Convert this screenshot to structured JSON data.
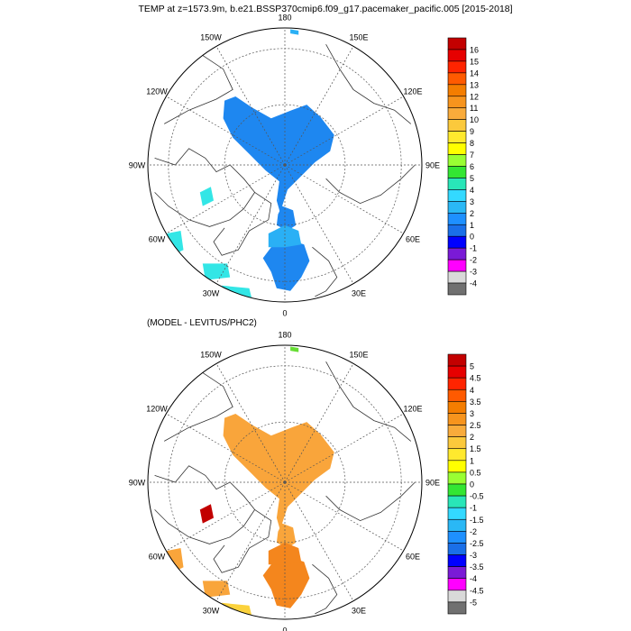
{
  "title": "TEMP at z=1573.9m, b.e21.BSSP370cmip6.f09_g17.pacemaker_pacific.005 [2015-2018]",
  "lon_labels": {
    "top": "180",
    "top_left": "150W",
    "top_right": "150E",
    "upper_left": "120W",
    "upper_right": "120E",
    "left": "90W",
    "right": "90E",
    "lower_left": "60W",
    "lower_right": "60E",
    "bottom_left": "30W",
    "bottom_right": "30E",
    "bottom": "0"
  },
  "panels": {
    "top": {
      "subtitle": "",
      "colorbar": {
        "labels": [
          "16",
          "15",
          "14",
          "13",
          "12",
          "11",
          "10",
          "9",
          "8",
          "7",
          "6",
          "5",
          "4",
          "3",
          "2",
          "1",
          "0",
          "-1",
          "-2",
          "-3",
          "-4"
        ],
        "colors": [
          "#c30000",
          "#e60000",
          "#ff2400",
          "#ff5a00",
          "#f47d00",
          "#f7941d",
          "#f9ab3b",
          "#fbc93c",
          "#ffe92e",
          "#ffff00",
          "#99ff33",
          "#33e633",
          "#29e6b8",
          "#33d9ff",
          "#2ab8f5",
          "#1e90ff",
          "#1a6fe8",
          "#0000ff",
          "#7a1ad6",
          "#ff00ff",
          "#d9d9d9",
          "#707070"
        ]
      },
      "fields": [
        {
          "name": "arctic-basin",
          "color": "#1e87f0"
        },
        {
          "name": "fram-strait",
          "color": "#1e87f0"
        },
        {
          "name": "norwegian-sea",
          "color": "#1e87f0"
        },
        {
          "name": "greenland-sea-warm",
          "color": "#2ab0f5"
        },
        {
          "name": "baffin-bay",
          "color": "#33e6e6"
        },
        {
          "name": "labrador-sea",
          "color": "#33e6e6"
        },
        {
          "name": "irminger-sea",
          "color": "#33e6e6"
        },
        {
          "name": "north-atlantic",
          "color": "#33e6e6"
        },
        {
          "name": "bering-strait",
          "color": "#2ab0f5"
        }
      ]
    },
    "bottom": {
      "subtitle": "(MODEL - LEVITUS/PHC2)",
      "colorbar": {
        "labels": [
          "5",
          "4.5",
          "4",
          "3.5",
          "3",
          "2.5",
          "2",
          "1.5",
          "1",
          "0.5",
          "0",
          "-0.5",
          "-1",
          "-1.5",
          "-2",
          "-2.5",
          "-3",
          "-3.5",
          "-4",
          "-4.5",
          "-5"
        ],
        "colors": [
          "#c30000",
          "#e60000",
          "#ff2400",
          "#ff5a00",
          "#f47d00",
          "#f7941d",
          "#f9ab3b",
          "#fbc93c",
          "#ffe92e",
          "#ffff00",
          "#99ff33",
          "#33e633",
          "#29e6b8",
          "#33d9ff",
          "#2ab8f5",
          "#1e90ff",
          "#1a6fe8",
          "#0000ff",
          "#7a1ad6",
          "#ff00ff",
          "#d9d9d9",
          "#707070"
        ]
      },
      "fields": [
        {
          "name": "arctic-basin",
          "color": "#f9a53b"
        },
        {
          "name": "fram-strait",
          "color": "#f9a53b"
        },
        {
          "name": "norwegian-sea",
          "color": "#f4861d"
        },
        {
          "name": "greenland-sea-warm",
          "color": "#f4861d"
        },
        {
          "name": "baffin-bay",
          "color": "#c20000"
        },
        {
          "name": "labrador-sea",
          "color": "#f9a53b"
        },
        {
          "name": "irminger-sea",
          "color": "#f9a53b"
        },
        {
          "name": "north-atlantic",
          "color": "#fbd23c"
        },
        {
          "name": "bering-strait",
          "color": "#66dd33"
        }
      ]
    }
  }
}
